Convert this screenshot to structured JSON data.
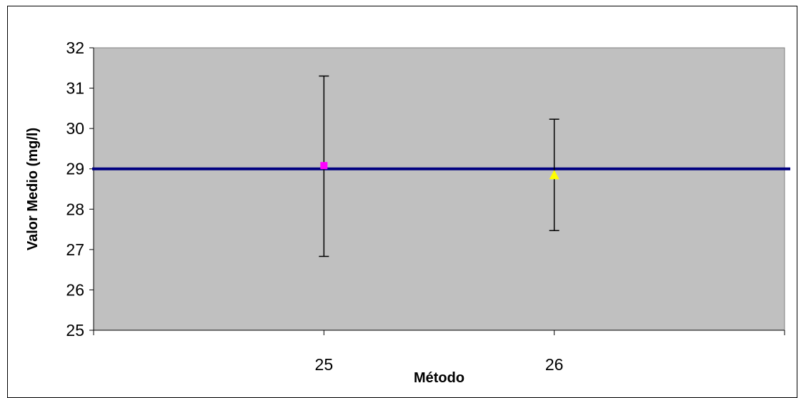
{
  "chart_data": {
    "type": "scatter",
    "title": "",
    "xlabel": "Método",
    "ylabel": "Valor Medio (mg/l)",
    "ylim": [
      25,
      32
    ],
    "yticks": [
      25,
      26,
      27,
      28,
      29,
      30,
      31,
      32
    ],
    "xlim": [
      24,
      27
    ],
    "xticks": [
      25,
      26
    ],
    "grid": false,
    "plot_background": "#c0c0c0",
    "reference_line": {
      "y": 29.0,
      "color": "#000080"
    },
    "points": [
      {
        "x": 25,
        "y": 29.08,
        "err_low": 26.83,
        "err_high": 31.3,
        "marker": "square",
        "color": "#ff00ff"
      },
      {
        "x": 26,
        "y": 28.85,
        "err_low": 27.47,
        "err_high": 30.23,
        "marker": "triangle",
        "color": "#ffff00"
      }
    ]
  }
}
